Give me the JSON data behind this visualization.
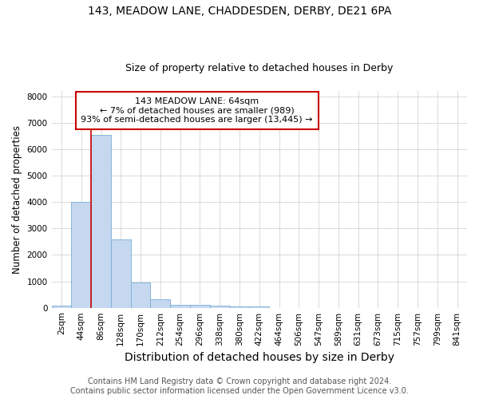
{
  "title1": "143, MEADOW LANE, CHADDESDEN, DERBY, DE21 6PA",
  "title2": "Size of property relative to detached houses in Derby",
  "xlabel": "Distribution of detached houses by size in Derby",
  "ylabel": "Number of detached properties",
  "bin_labels": [
    "2sqm",
    "44sqm",
    "86sqm",
    "128sqm",
    "170sqm",
    "212sqm",
    "254sqm",
    "296sqm",
    "338sqm",
    "380sqm",
    "422sqm",
    "464sqm",
    "506sqm",
    "547sqm",
    "589sqm",
    "631sqm",
    "673sqm",
    "715sqm",
    "757sqm",
    "799sqm",
    "841sqm"
  ],
  "bar_heights": [
    80,
    4000,
    6550,
    2600,
    950,
    320,
    120,
    100,
    75,
    50,
    50,
    0,
    0,
    0,
    0,
    0,
    0,
    0,
    0,
    0,
    0
  ],
  "bar_color": "#c5d8f0",
  "bar_edge_color": "#7aadd4",
  "property_line_x": 1.5,
  "property_line_color": "#cc0000",
  "ylim": [
    0,
    8200
  ],
  "annotation_text": "143 MEADOW LANE: 64sqm\n← 7% of detached houses are smaller (989)\n93% of semi-detached houses are larger (13,445) →",
  "annotation_box_color": "#cc0000",
  "footnote1": "Contains HM Land Registry data © Crown copyright and database right 2024.",
  "footnote2": "Contains public sector information licensed under the Open Government Licence v3.0.",
  "title1_fontsize": 10,
  "title2_fontsize": 9,
  "xlabel_fontsize": 10,
  "ylabel_fontsize": 8.5,
  "tick_fontsize": 7.5,
  "footnote_fontsize": 7,
  "annotation_fontsize": 8
}
